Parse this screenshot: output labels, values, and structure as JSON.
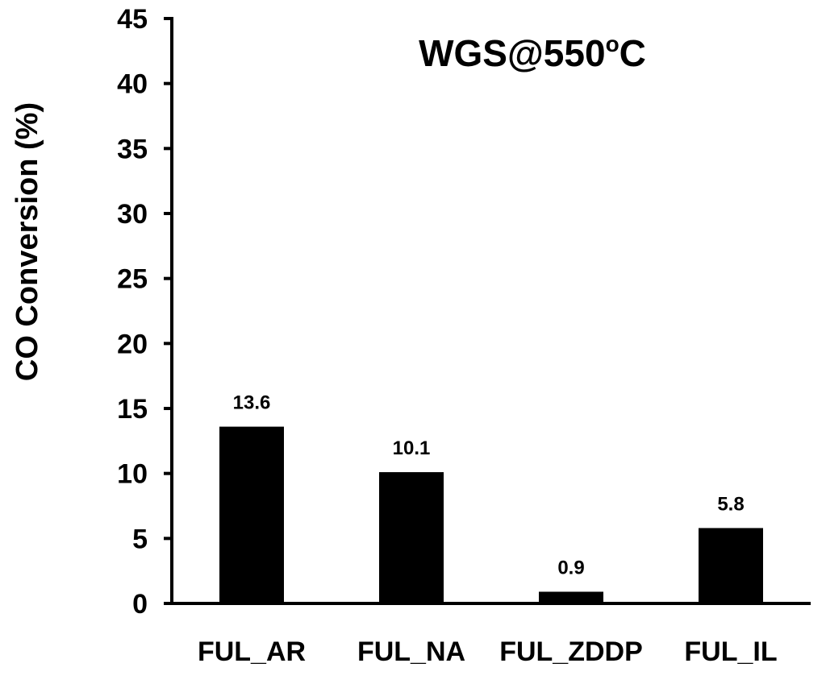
{
  "chart_data": {
    "type": "bar",
    "title": "WGS@550",
    "title_superscript": "o",
    "title_suffix": "C",
    "xlabel": "",
    "ylabel": "CO Conversion  (%)",
    "categories": [
      "FUL_AR",
      "FUL_NA",
      "FUL_ZDDP",
      "FUL_IL"
    ],
    "values": [
      13.6,
      10.1,
      0.9,
      5.8
    ],
    "data_labels": [
      "13.6",
      "10.1",
      "0.9",
      "5.8"
    ],
    "ylim": [
      0,
      45
    ],
    "yticks": [
      0,
      5,
      10,
      15,
      20,
      25,
      30,
      35,
      40,
      45
    ],
    "grid": false,
    "legend": "none",
    "bar_color": "#000000"
  }
}
